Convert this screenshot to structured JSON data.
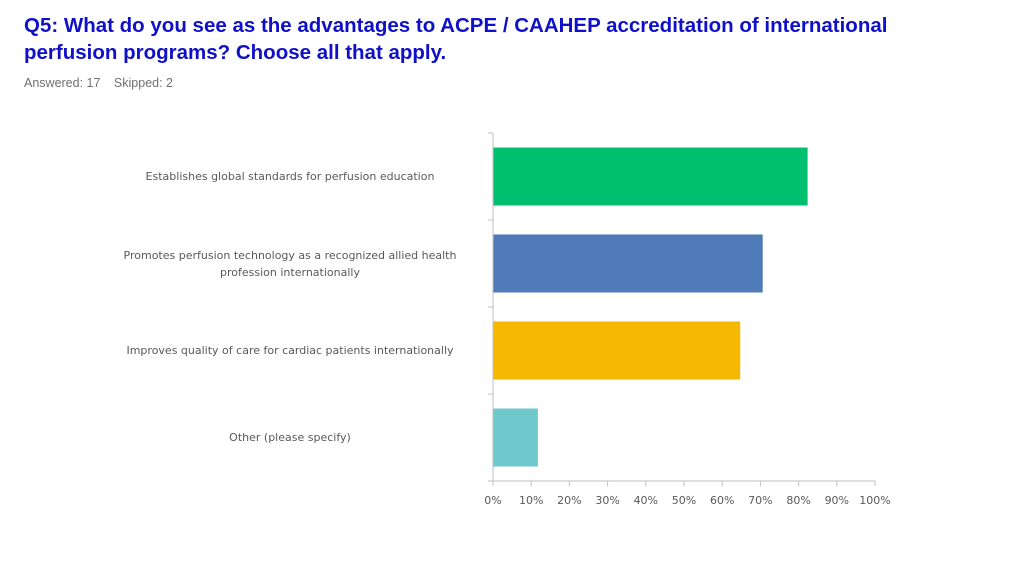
{
  "page": {
    "title": "Q5: What do you see as the advantages to ACPE / CAAHEP accreditation of international perfusion programs? Choose all that apply.",
    "answered": "Answered: 17",
    "skipped": "Skipped: 2"
  },
  "chart_data": {
    "type": "bar",
    "orientation": "horizontal",
    "categories": [
      "Establishes global standards for perfusion education",
      "Promotes perfusion technology as a recognized allied health profession internationally",
      "Improves quality of care for cardiac patients internationally",
      "Other (please specify)"
    ],
    "values": [
      82.35,
      70.59,
      64.71,
      11.76
    ],
    "colors": [
      "#00c070",
      "#4f7bb8",
      "#f5b800",
      "#6ec8cc"
    ],
    "xlim": [
      0,
      100
    ],
    "ticks": [
      "0%",
      "10%",
      "20%",
      "30%",
      "40%",
      "50%",
      "60%",
      "70%",
      "80%",
      "90%",
      "100%"
    ],
    "axis_color": "#bfbfbf",
    "tick_label_color": "#595959",
    "grid": false
  }
}
